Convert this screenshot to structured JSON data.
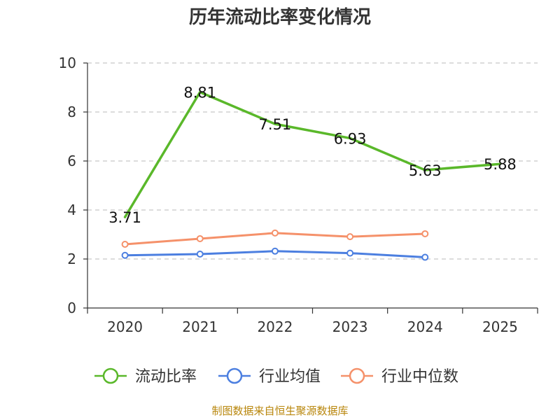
{
  "chart_data": {
    "type": "line",
    "title": "历年流动比率变化情况",
    "categories": [
      "2020",
      "2021",
      "2022",
      "2023",
      "2024",
      "2025"
    ],
    "ylim": [
      0,
      10
    ],
    "yticks": [
      0,
      2,
      4,
      6,
      8,
      10
    ],
    "grid": true,
    "legend_position": "bottom",
    "series": [
      {
        "name": "流动比率",
        "color": "#5ab82a",
        "values": [
          3.71,
          8.81,
          7.51,
          6.93,
          5.63,
          5.88
        ],
        "labels": [
          "3.71",
          "8.81",
          "7.51",
          "6.93",
          "5.63",
          "5.88"
        ],
        "show_labels": true,
        "show_markers": false
      },
      {
        "name": "行业均值",
        "color": "#4c7fe0",
        "values": [
          2.15,
          2.2,
          2.32,
          2.24,
          2.07,
          null
        ],
        "show_labels": false,
        "show_markers": true
      },
      {
        "name": "行业中位数",
        "color": "#f5916a",
        "values": [
          2.6,
          2.83,
          3.06,
          2.91,
          3.03,
          null
        ],
        "show_labels": false,
        "show_markers": true
      }
    ]
  },
  "source": "制图数据来自恒生聚源数据库"
}
